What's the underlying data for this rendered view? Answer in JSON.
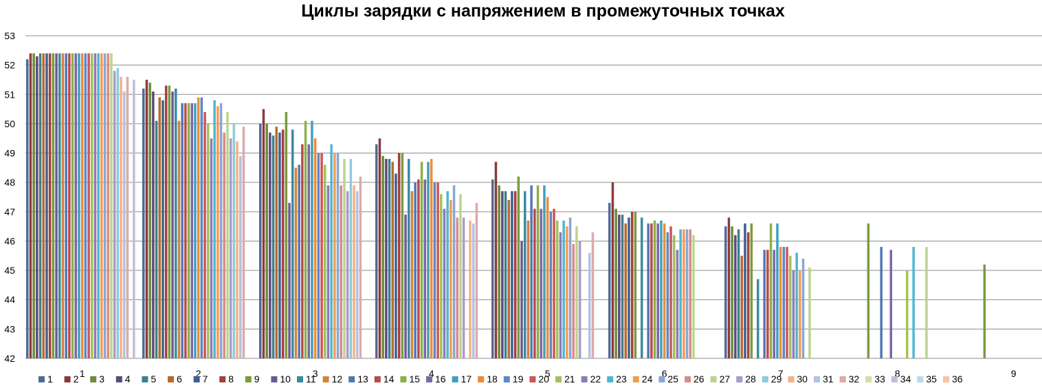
{
  "chart_data": {
    "type": "bar",
    "title": "Циклы зарядки с напряжением в промежуточных точках",
    "xlabel": "",
    "ylabel": "",
    "ylim": [
      42,
      53
    ],
    "yticks": [
      "42",
      "43",
      "44",
      "45",
      "46",
      "47",
      "48",
      "49",
      "50",
      "51",
      "52",
      "53"
    ],
    "categories": [
      "1",
      "2",
      "3",
      "4",
      "5",
      "6",
      "7",
      "8",
      "9"
    ],
    "grid": true,
    "legend_position": "bottom",
    "series": [
      {
        "name": "1",
        "color": "#4f6a96",
        "values": [
          52.2,
          51.2,
          50.0,
          49.3,
          48.1,
          47.3,
          46.5,
          null,
          null
        ]
      },
      {
        "name": "2",
        "color": "#8b3a3a",
        "values": [
          52.4,
          51.5,
          50.5,
          49.5,
          48.7,
          48.0,
          46.8,
          null,
          null
        ]
      },
      {
        "name": "3",
        "color": "#6e8a3a",
        "values": [
          52.4,
          51.4,
          50.0,
          48.9,
          47.9,
          47.1,
          46.5,
          null,
          null
        ]
      },
      {
        "name": "4",
        "color": "#5a4a7a",
        "values": [
          52.3,
          51.1,
          49.7,
          48.8,
          47.7,
          46.9,
          46.2,
          null,
          null
        ]
      },
      {
        "name": "5",
        "color": "#3d7f90",
        "values": [
          52.4,
          50.1,
          49.6,
          48.8,
          47.7,
          46.9,
          46.4,
          null,
          null
        ]
      },
      {
        "name": "6",
        "color": "#b66b2d",
        "values": [
          52.4,
          50.9,
          49.9,
          48.7,
          47.4,
          46.6,
          45.5,
          null,
          null
        ]
      },
      {
        "name": "7",
        "color": "#3f5f8f",
        "values": [
          52.4,
          50.8,
          49.7,
          48.3,
          47.7,
          46.8,
          46.6,
          null,
          null
        ]
      },
      {
        "name": "8",
        "color": "#a33f3f",
        "values": [
          52.4,
          51.3,
          49.8,
          49.0,
          47.7,
          47.0,
          46.3,
          null,
          null
        ]
      },
      {
        "name": "9",
        "color": "#7b9a3f",
        "values": [
          52.4,
          51.3,
          50.4,
          49.0,
          48.2,
          47.0,
          46.6,
          46.6,
          45.2
        ]
      },
      {
        "name": "10",
        "color": "#6a5a92",
        "values": [
          52.4,
          51.1,
          47.3,
          46.9,
          46.0,
          null,
          null,
          null,
          null
        ]
      },
      {
        "name": "11",
        "color": "#3b8aa3",
        "values": [
          52.4,
          51.2,
          49.8,
          48.8,
          47.7,
          46.8,
          44.7,
          null,
          null
        ]
      },
      {
        "name": "12",
        "color": "#d4823a",
        "values": [
          52.4,
          50.1,
          48.5,
          47.7,
          46.7,
          null,
          null,
          null,
          null
        ]
      },
      {
        "name": "13",
        "color": "#5078b4",
        "values": [
          52.4,
          50.7,
          48.6,
          48.0,
          47.9,
          46.6,
          45.7,
          45.8,
          null
        ]
      },
      {
        "name": "14",
        "color": "#b84a4a",
        "values": [
          52.4,
          50.7,
          49.3,
          48.1,
          47.1,
          46.6,
          45.7,
          null,
          null
        ]
      },
      {
        "name": "15",
        "color": "#8fae4a",
        "values": [
          52.4,
          50.7,
          50.1,
          48.7,
          47.9,
          46.7,
          46.6,
          null,
          null
        ]
      },
      {
        "name": "16",
        "color": "#7a68a8",
        "values": [
          52.4,
          50.7,
          49.3,
          48.1,
          47.1,
          46.6,
          45.7,
          45.7,
          null
        ]
      },
      {
        "name": "17",
        "color": "#40a0bc",
        "values": [
          52.4,
          50.7,
          50.1,
          48.7,
          47.9,
          46.7,
          46.6,
          null,
          null
        ]
      },
      {
        "name": "18",
        "color": "#ee8c38",
        "values": [
          52.4,
          50.9,
          49.5,
          48.8,
          47.5,
          46.6,
          45.8,
          null,
          null
        ]
      },
      {
        "name": "19",
        "color": "#5b88c6",
        "values": [
          52.4,
          50.9,
          49.0,
          48.0,
          47.0,
          46.3,
          45.8,
          null,
          null
        ]
      },
      {
        "name": "20",
        "color": "#cc5555",
        "values": [
          52.4,
          50.4,
          49.0,
          48.0,
          47.1,
          46.5,
          45.8,
          null,
          null
        ]
      },
      {
        "name": "21",
        "color": "#a2c25a",
        "values": [
          52.4,
          50.0,
          48.6,
          47.6,
          46.7,
          46.2,
          45.5,
          45.0,
          null
        ]
      },
      {
        "name": "22",
        "color": "#8b7bb8",
        "values": [
          52.4,
          49.5,
          47.9,
          47.1,
          46.3,
          45.7,
          45.0,
          null,
          null
        ]
      },
      {
        "name": "23",
        "color": "#4fb6cf",
        "values": [
          52.4,
          50.8,
          49.3,
          47.7,
          46.7,
          46.4,
          45.6,
          45.8,
          null
        ]
      },
      {
        "name": "24",
        "color": "#f29c52",
        "values": [
          52.4,
          50.6,
          49.0,
          47.4,
          46.5,
          46.4,
          45.0,
          null,
          null
        ]
      },
      {
        "name": "25",
        "color": "#8aa6d6",
        "values": [
          52.4,
          50.7,
          49.0,
          47.9,
          46.8,
          46.4,
          45.4,
          null,
          null
        ]
      },
      {
        "name": "26",
        "color": "#d98a8a",
        "values": [
          52.4,
          49.7,
          47.9,
          46.8,
          45.9,
          46.4,
          null,
          null,
          null
        ]
      },
      {
        "name": "27",
        "color": "#bcd48a",
        "values": [
          52.4,
          50.4,
          48.8,
          47.6,
          46.5,
          46.2,
          45.1,
          45.8,
          null
        ]
      },
      {
        "name": "28",
        "color": "#a99bc9",
        "values": [
          51.8,
          49.5,
          47.7,
          46.8,
          46.0,
          null,
          null,
          null,
          null
        ]
      },
      {
        "name": "29",
        "color": "#8ccbe0",
        "values": [
          51.9,
          50.0,
          48.8,
          null,
          null,
          null,
          null,
          null,
          null
        ]
      },
      {
        "name": "30",
        "color": "#f6b184",
        "values": [
          51.6,
          49.4,
          47.9,
          46.7,
          null,
          null,
          null,
          null,
          null
        ]
      },
      {
        "name": "31",
        "color": "#b3c3e0",
        "values": [
          51.1,
          48.9,
          47.7,
          46.6,
          45.6,
          null,
          null,
          null,
          null
        ]
      },
      {
        "name": "32",
        "color": "#dcaaaa",
        "values": [
          51.6,
          49.9,
          48.2,
          47.3,
          46.3,
          null,
          null,
          null,
          null
        ]
      },
      {
        "name": "33",
        "color": "#cfe0a8",
        "values": [
          null,
          null,
          null,
          null,
          null,
          null,
          null,
          null,
          null
        ]
      },
      {
        "name": "34",
        "color": "#c4bbd9",
        "values": [
          51.5,
          null,
          null,
          null,
          null,
          null,
          null,
          null,
          null
        ]
      },
      {
        "name": "35",
        "color": "#b5dcea",
        "values": [
          null,
          null,
          null,
          null,
          null,
          null,
          null,
          null,
          null
        ]
      },
      {
        "name": "36",
        "color": "#f7c3a3",
        "values": [
          null,
          null,
          null,
          null,
          null,
          null,
          null,
          null,
          null
        ]
      }
    ]
  }
}
